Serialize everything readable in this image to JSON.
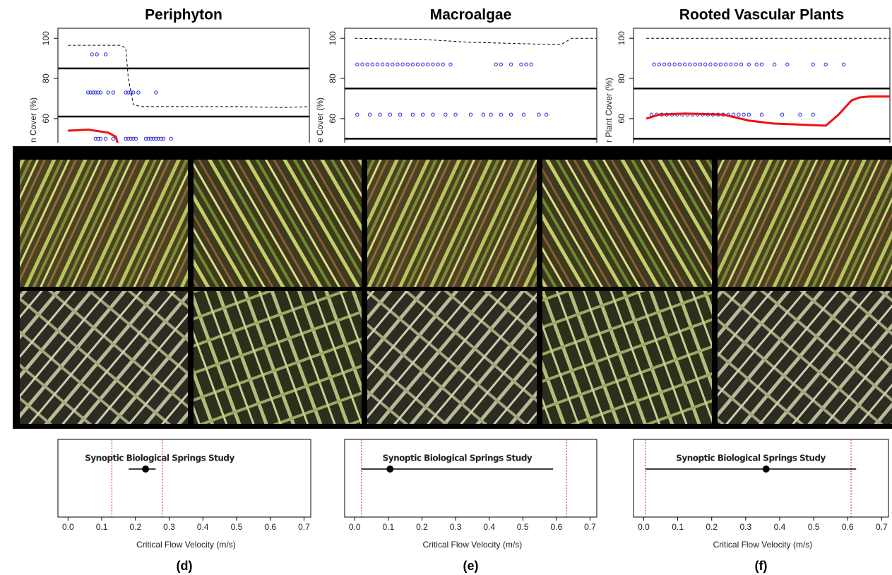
{
  "chart_data": [
    {
      "type": "scatter",
      "title": "Periphyton",
      "ylabel": "n Cover (%)",
      "ylim": [
        48,
        105
      ],
      "yticks": [
        60,
        80,
        100
      ],
      "xlim": [
        0,
        1
      ],
      "hlines": [
        85,
        61
      ],
      "series": [
        {
          "kind": "points",
          "color": "#2a2ae0",
          "x": [
            0.135,
            0.155,
            0.19
          ],
          "values": [
            92,
            92,
            92
          ]
        },
        {
          "kind": "points",
          "color": "#2a2ae0",
          "x": [
            0.12,
            0.13,
            0.14,
            0.15,
            0.16,
            0.17,
            0.2,
            0.22,
            0.27,
            0.28,
            0.29,
            0.3,
            0.32,
            0.39
          ],
          "values": [
            73,
            73,
            73,
            73,
            73,
            73,
            73,
            73,
            73,
            73,
            73,
            73,
            73,
            73
          ]
        },
        {
          "kind": "points",
          "color": "#2a2ae0",
          "x": [
            0.15,
            0.16,
            0.17,
            0.19,
            0.22,
            0.27,
            0.28,
            0.29,
            0.3,
            0.31,
            0.35,
            0.36,
            0.37,
            0.38,
            0.39,
            0.4,
            0.41,
            0.42,
            0.45
          ],
          "values": [
            50,
            50,
            50,
            50,
            50,
            50,
            50,
            50,
            50,
            50,
            50,
            50,
            50,
            50,
            50,
            50,
            50,
            50,
            50
          ]
        },
        {
          "kind": "dashed",
          "color": "#000000",
          "x": [
            0.04,
            0.25,
            0.27,
            0.28,
            0.3,
            0.33,
            0.5,
            0.7,
            0.9,
            1
          ],
          "values": [
            96.5,
            96.5,
            95,
            80,
            67,
            66,
            66,
            66,
            65.5,
            66
          ]
        },
        {
          "kind": "line",
          "color": "#ee1111",
          "x": [
            0.04,
            0.12,
            0.2,
            0.23,
            0.24,
            0.245
          ],
          "values": [
            54,
            54.5,
            53,
            51,
            47,
            45
          ]
        }
      ]
    },
    {
      "type": "scatter",
      "title": "Macroalgae",
      "ylabel": "e Cover (%)",
      "ylim": [
        48,
        105
      ],
      "yticks": [
        60,
        80,
        100
      ],
      "xlim": [
        0,
        1
      ],
      "hlines": [
        75,
        50
      ],
      "series": [
        {
          "kind": "points",
          "color": "#2a2ae0",
          "x": [
            0.05,
            0.07,
            0.09,
            0.11,
            0.13,
            0.15,
            0.17,
            0.19,
            0.21,
            0.23,
            0.25,
            0.27,
            0.29,
            0.31,
            0.33,
            0.35,
            0.37,
            0.39,
            0.42,
            0.6,
            0.62,
            0.66,
            0.7,
            0.72,
            0.74
          ],
          "values": [
            87,
            87,
            87,
            87,
            87,
            87,
            87,
            87,
            87,
            87,
            87,
            87,
            87,
            87,
            87,
            87,
            87,
            87,
            87,
            87,
            87,
            87,
            87,
            87,
            87
          ]
        },
        {
          "kind": "points",
          "color": "#2a2ae0",
          "x": [
            0.05,
            0.1,
            0.14,
            0.18,
            0.22,
            0.27,
            0.31,
            0.35,
            0.4,
            0.44,
            0.5,
            0.55,
            0.58,
            0.62,
            0.66,
            0.71,
            0.77,
            0.8
          ],
          "values": [
            62,
            62,
            62,
            62,
            62,
            62,
            62,
            62,
            62,
            62,
            62,
            62,
            62,
            62,
            62,
            62,
            62,
            62
          ]
        },
        {
          "kind": "dashed",
          "color": "#000000",
          "x": [
            0.04,
            0.3,
            0.5,
            0.8,
            0.86,
            0.9,
            1
          ],
          "values": [
            100,
            99.5,
            98,
            97,
            97,
            100,
            100
          ]
        }
      ]
    },
    {
      "type": "scatter",
      "title": "Rooted Vascular Plants",
      "ylabel": "r Plant Cover (%)",
      "ylim": [
        48,
        105
      ],
      "yticks": [
        60,
        80,
        100
      ],
      "xlim": [
        0,
        1
      ],
      "hlines": [
        75,
        50
      ],
      "series": [
        {
          "kind": "points",
          "color": "#2a2ae0",
          "x": [
            0.08,
            0.1,
            0.12,
            0.14,
            0.16,
            0.18,
            0.2,
            0.22,
            0.24,
            0.26,
            0.28,
            0.3,
            0.32,
            0.34,
            0.36,
            0.38,
            0.4,
            0.42,
            0.45,
            0.48,
            0.5,
            0.55,
            0.6,
            0.7,
            0.75,
            0.82
          ],
          "values": [
            87,
            87,
            87,
            87,
            87,
            87,
            87,
            87,
            87,
            87,
            87,
            87,
            87,
            87,
            87,
            87,
            87,
            87,
            87,
            87,
            87,
            87,
            87,
            87,
            87,
            87
          ]
        },
        {
          "kind": "points",
          "color": "#2a2ae0",
          "x": [
            0.07,
            0.09,
            0.11,
            0.13,
            0.15,
            0.17,
            0.19,
            0.21,
            0.23,
            0.25,
            0.27,
            0.29,
            0.31,
            0.33,
            0.35,
            0.37,
            0.39,
            0.41,
            0.43,
            0.45,
            0.5,
            0.58,
            0.65,
            0.7
          ],
          "values": [
            62,
            62,
            62,
            62,
            62,
            62,
            62,
            62,
            62,
            62,
            62,
            62,
            62,
            62,
            62,
            62,
            62,
            62,
            62,
            62,
            62,
            62,
            62,
            62
          ]
        },
        {
          "kind": "dashed",
          "color": "#000000",
          "x": [
            0.05,
            1
          ],
          "values": [
            100,
            100
          ]
        },
        {
          "kind": "line",
          "color": "#ee1111",
          "x": [
            0.05,
            0.1,
            0.2,
            0.35,
            0.45,
            0.55,
            0.65,
            0.75,
            0.8,
            0.85,
            0.88,
            0.92,
            1
          ],
          "values": [
            60,
            62,
            62.5,
            62,
            59,
            57.5,
            57,
            56.5,
            62,
            69,
            70.5,
            71,
            71
          ]
        }
      ]
    },
    {
      "type": "interval",
      "label": "Synoptic Biological Springs Study",
      "estimate": 0.23,
      "interval": [
        0.18,
        0.26
      ],
      "reference_lines": [
        0.13,
        0.28
      ],
      "xlim": [
        -0.03,
        0.72
      ],
      "xticks": [
        {
          "value": 0,
          "label": "0.0"
        },
        0.1,
        0.2,
        0.3,
        0.4,
        0.5,
        0.6,
        0.7
      ],
      "xlabel": "Critical Flow Velocity (m/s)",
      "panel_label": "(d)"
    },
    {
      "type": "interval",
      "label": "Synoptic Biological Springs Study",
      "estimate": 0.105,
      "interval": [
        0.02,
        0.59
      ],
      "reference_lines": [
        0.02,
        0.63
      ],
      "xlim": [
        -0.03,
        0.72
      ],
      "xticks": [
        {
          "value": 0,
          "label": "0.0"
        },
        0.1,
        0.2,
        0.3,
        0.4,
        0.5,
        0.6,
        0.7
      ],
      "xlabel": "Critical Flow Velocity (m/s)",
      "panel_label": "(e)"
    },
    {
      "type": "interval",
      "label": "Synoptic Biological Springs Study",
      "estimate": 0.36,
      "interval": [
        0.005,
        0.625
      ],
      "reference_lines": [
        0.005,
        0.61
      ],
      "xlim": [
        -0.03,
        0.72
      ],
      "xticks": [
        {
          "value": 0,
          "label": "0.0"
        },
        0.1,
        0.2,
        0.3,
        0.4,
        0.5,
        0.6,
        0.7
      ],
      "xlabel": "Critical Flow Velocity (m/s)",
      "panel_label": "(f)"
    }
  ]
}
